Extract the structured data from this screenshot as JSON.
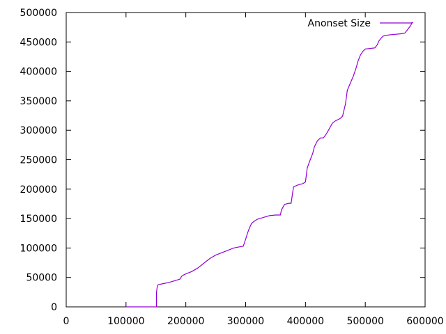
{
  "chart_data": {
    "type": "line",
    "grid": false,
    "legend_position": "top-right",
    "xlim": [
      0,
      600000
    ],
    "ylim": [
      0,
      500000
    ],
    "x_ticks": [
      0,
      100000,
      200000,
      300000,
      400000,
      500000,
      600000
    ],
    "y_ticks": [
      0,
      50000,
      100000,
      150000,
      200000,
      250000,
      300000,
      350000,
      400000,
      450000,
      500000
    ],
    "x_tick_labels": [
      "0",
      "100000",
      "200000",
      "300000",
      "400000",
      "500000",
      "600000"
    ],
    "y_tick_labels": [
      "0",
      "50000",
      "100000",
      "150000",
      "200000",
      "250000",
      "300000",
      "350000",
      "400000",
      "450000",
      "500000"
    ],
    "series": [
      {
        "name": "Anonset Size",
        "color": "#9400d3",
        "x": [
          100000,
          151000,
          151000,
          152000,
          153000,
          155000,
          160000,
          170000,
          180000,
          190000,
          193000,
          196000,
          200000,
          210000,
          220000,
          230000,
          240000,
          250000,
          260000,
          270000,
          280000,
          290000,
          296000,
          300000,
          303000,
          306000,
          310000,
          315000,
          320000,
          330000,
          340000,
          350000,
          358000,
          360000,
          365000,
          372000,
          376000,
          380000,
          390000,
          395000,
          400000,
          403000,
          408000,
          412000,
          415000,
          420000,
          425000,
          430000,
          435000,
          440000,
          445000,
          450000,
          458000,
          462000,
          467000,
          470000,
          475000,
          480000,
          485000,
          488000,
          492000,
          496000,
          500000,
          508000,
          516000,
          520000,
          523000,
          527000,
          530000,
          540000,
          550000,
          560000,
          566000,
          570000,
          573000,
          576000,
          578000,
          580000
        ],
        "y": [
          0,
          0,
          25000,
          33000,
          37000,
          38000,
          39000,
          41000,
          44000,
          47000,
          52000,
          54000,
          56000,
          60000,
          66000,
          74000,
          82000,
          88000,
          92000,
          96000,
          100000,
          102000,
          103000,
          115000,
          125000,
          133000,
          142000,
          146000,
          149000,
          152000,
          155000,
          156000,
          156000,
          165000,
          174000,
          176000,
          176000,
          204000,
          208000,
          209000,
          212000,
          236000,
          250000,
          260000,
          272000,
          282000,
          287000,
          287000,
          294000,
          303000,
          312000,
          316000,
          320000,
          324000,
          345000,
          368000,
          380000,
          392000,
          407000,
          418000,
          428000,
          434000,
          438000,
          439000,
          440000,
          445000,
          452000,
          457000,
          460000,
          462000,
          463000,
          464000,
          465000,
          470000,
          474000,
          478000,
          483000,
          483000
        ]
      }
    ]
  }
}
